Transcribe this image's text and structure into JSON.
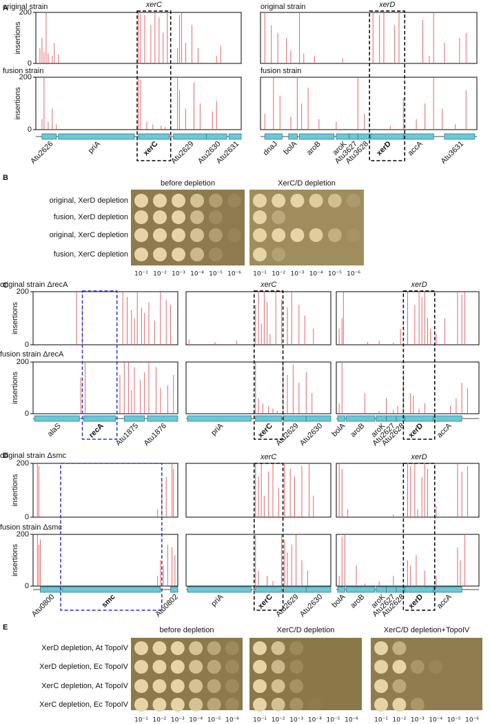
{
  "insertion_color": "#e8474a",
  "panels": {
    "A": {
      "letter": "A",
      "columns": [
        {
          "highlight": "xerC",
          "plots": [
            {
              "title": "original strain",
              "ylabel": "insertions",
              "ylim": [
                0,
                200
              ],
              "yticks": [
                0,
                200
              ],
              "xlim": [
                0,
                100
              ],
              "x": [
                2,
                3,
                4,
                5,
                6,
                8,
                9,
                11,
                50,
                51,
                53,
                56,
                58,
                60,
                62,
                64,
                69,
                70,
                71,
                73,
                76,
                79,
                88,
                90
              ],
              "values": [
                60,
                100,
                45,
                200,
                40,
                30,
                80,
                35,
                200,
                195,
                190,
                150,
                200,
                180,
                120,
                200,
                60,
                190,
                200,
                80,
                150,
                60,
                30,
                70
              ]
            },
            {
              "title": "fusion strain",
              "ylabel": "insertions",
              "ylim": [
                0,
                200
              ],
              "yticks": [
                0,
                200
              ],
              "xlim": [
                0,
                100
              ],
              "x": [
                3,
                4,
                6,
                8,
                10,
                50,
                51,
                54,
                57,
                61,
                63,
                69,
                70,
                73,
                77,
                80,
                86,
                88
              ],
              "values": [
                40,
                200,
                30,
                80,
                20,
                200,
                190,
                30,
                20,
                15,
                10,
                200,
                150,
                80,
                180,
                100,
                70,
                110
              ]
            }
          ],
          "genes": [
            "Atu2626",
            "priA",
            "xerC",
            "Atu2629",
            "Atu2630",
            "Atu2631"
          ]
        },
        {
          "highlight": "xerD",
          "plots": [
            {
              "title": "original strain",
              "ylim": [
                0,
                200
              ],
              "xlim": [
                0,
                100
              ],
              "x": [
                2,
                5,
                8,
                12,
                14,
                18,
                20,
                25,
                38,
                52,
                55,
                57,
                62,
                64,
                75,
                78,
                80,
                85,
                92,
                95
              ],
              "values": [
                200,
                150,
                120,
                100,
                50,
                200,
                40,
                30,
                20,
                200,
                190,
                200,
                150,
                200,
                170,
                30,
                200,
                80,
                100,
                120
              ]
            },
            {
              "title": "fusion strain",
              "ylim": [
                0,
                200
              ],
              "xlim": [
                0,
                100
              ],
              "x": [
                2,
                6,
                9,
                14,
                17,
                19,
                22,
                27,
                35,
                45,
                48,
                60,
                66,
                72,
                76,
                80,
                84,
                90,
                95
              ],
              "values": [
                60,
                200,
                130,
                50,
                200,
                100,
                160,
                40,
                30,
                200,
                60,
                15,
                120,
                40,
                100,
                200,
                80,
                20,
                150
              ]
            }
          ],
          "genes": [
            "dnaJ",
            "bolA",
            "aroB",
            "aroK",
            "Atu3627",
            "Atu3628",
            "xerD",
            "accA",
            "Atu3631"
          ]
        }
      ]
    },
    "B": {
      "letter": "B",
      "rows": [
        "original, XerD depletion",
        "fusion, XerD depletion",
        "original, XerC depletion",
        "fusion, XerC depletion"
      ],
      "plates": [
        {
          "title": "before depletion",
          "dilutions": [
            "10⁻¹",
            "10⁻²",
            "10⁻³",
            "10⁻⁴",
            "10⁻⁵",
            "10⁻⁶"
          ]
        },
        {
          "title": "XerC/D depletion",
          "dilutions": [
            "10⁻¹",
            "10⁻²",
            "10⁻³",
            "10⁻⁴",
            "10⁻⁵",
            "10⁻⁶"
          ]
        }
      ]
    },
    "C": {
      "letter": "C",
      "columns": [
        {
          "plots": [
            {
              "title": "original strain ΔrecA",
              "ylabel": "insertions",
              "ylim": [
                0,
                200
              ],
              "yticks": [
                0,
                200
              ],
              "xlim": [
                0,
                100
              ],
              "x": [
                30,
                34,
                62,
                65,
                68,
                70,
                72,
                75,
                77,
                80,
                84,
                88,
                92,
                95
              ],
              "values": [
                200,
                150,
                200,
                180,
                130,
                100,
                200,
                140,
                120,
                160,
                90,
                200,
                170,
                150
              ]
            },
            {
              "title": "fusion strain ΔrecA",
              "ylabel": "insertions",
              "ylim": [
                0,
                200
              ],
              "yticks": [
                0,
                200
              ],
              "xlim": [
                0,
                100
              ],
              "x": [
                33,
                36,
                60,
                63,
                66,
                68,
                70,
                74,
                77,
                80,
                85,
                88,
                93,
                97
              ],
              "values": [
                140,
                200,
                150,
                200,
                200,
                90,
                180,
                130,
                160,
                200,
                180,
                100,
                110,
                150
              ]
            }
          ],
          "genes": [
            "alaS",
            "recA",
            "Atu1875",
            "Atu1876"
          ]
        },
        {
          "highlight": "xerC",
          "plots": [
            {
              "ylim": [
                0,
                200
              ],
              "xlim": [
                0,
                100
              ],
              "x": [
                2,
                20,
                35,
                48,
                50,
                52,
                54,
                56,
                58,
                62,
                66,
                70,
                73,
                78,
                82,
                88
              ],
              "values": [
                20,
                10,
                15,
                150,
                200,
                80,
                200,
                160,
                40,
                200,
                170,
                140,
                200,
                150,
                110,
                60
              ]
            },
            {
              "ylim": [
                0,
                200
              ],
              "xlim": [
                0,
                100
              ],
              "x": [
                48,
                50,
                53,
                57,
                60,
                63,
                67,
                70,
                74,
                78,
                83,
                87
              ],
              "values": [
                200,
                60,
                40,
                30,
                20,
                10,
                200,
                150,
                190,
                120,
                160,
                80
              ]
            }
          ],
          "genes": [
            "priA",
            "xerC",
            "Atu2629",
            "Atu2630"
          ]
        },
        {
          "highlight": "xerD",
          "plots": [
            {
              "ylim": [
                0,
                200
              ],
              "xlim": [
                0,
                100
              ],
              "x": [
                2,
                4,
                5,
                22,
                30,
                40,
                45,
                50,
                55,
                58,
                60,
                62,
                64,
                66,
                70,
                76,
                85,
                88,
                90
              ],
              "values": [
                60,
                100,
                200,
                10,
                15,
                8,
                60,
                200,
                150,
                200,
                180,
                200,
                100,
                60,
                40,
                100,
                200,
                190,
                200
              ]
            },
            {
              "ylim": [
                0,
                200
              ],
              "xlim": [
                0,
                100
              ],
              "x": [
                2,
                4,
                20,
                30,
                35,
                40,
                43,
                47,
                52,
                54,
                58,
                62,
                80,
                84,
                88,
                92
              ],
              "values": [
                40,
                200,
                80,
                10,
                60,
                15,
                30,
                150,
                80,
                70,
                20,
                40,
                30,
                60,
                120,
                100
              ]
            }
          ],
          "genes": [
            "bolA",
            "aroB",
            "aroK",
            "Atu2627",
            "Atu2628",
            "xerD",
            "accA"
          ]
        }
      ]
    },
    "D": {
      "letter": "D",
      "columns": [
        {
          "plots": [
            {
              "title": "original strain Δsmc",
              "ylabel": "insertions",
              "ylim": [
                0,
                200
              ],
              "yticks": [
                0,
                200
              ],
              "xlim": [
                0,
                100
              ],
              "x": [
                3,
                4,
                86,
                89,
                92,
                96,
                97
              ],
              "values": [
                200,
                190,
                30,
                130,
                150,
                200,
                180
              ]
            },
            {
              "title": "fusion strain Δsmc",
              "ylabel": "insertions",
              "ylim": [
                0,
                200
              ],
              "yticks": [
                0,
                200
              ],
              "xlim": [
                0,
                100
              ],
              "x": [
                3,
                4,
                5,
                86,
                88,
                90,
                93,
                96,
                98
              ],
              "values": [
                200,
                160,
                180,
                40,
                100,
                80,
                160,
                150,
                120
              ]
            }
          ],
          "genes": [
            "Atu0800",
            "smc",
            "Atu0802"
          ]
        },
        {
          "highlight": "xerC",
          "plots": [
            {
              "ylim": [
                0,
                200
              ],
              "xlim": [
                0,
                100
              ],
              "x": [
                48,
                50,
                52,
                54,
                57,
                60,
                64,
                68,
                72,
                75,
                80,
                85,
                88
              ],
              "values": [
                200,
                150,
                200,
                80,
                170,
                200,
                110,
                200,
                180,
                150,
                190,
                200,
                80
              ]
            },
            {
              "ylim": [
                0,
                200
              ],
              "xlim": [
                0,
                100
              ],
              "x": [
                48,
                50,
                56,
                60,
                66,
                68,
                70,
                73,
                76,
                80,
                84
              ],
              "values": [
                200,
                60,
                40,
                20,
                200,
                180,
                130,
                160,
                200,
                100,
                60
              ]
            }
          ],
          "genes": [
            "priA",
            "xerC",
            "Atu2629",
            "Atu2630"
          ]
        },
        {
          "highlight": "xerD",
          "plots": [
            {
              "ylim": [
                0,
                200
              ],
              "xlim": [
                0,
                100
              ],
              "x": [
                2,
                4,
                8,
                40,
                50,
                52,
                55,
                57,
                60,
                62,
                64,
                70,
                85,
                88,
                92
              ],
              "values": [
                200,
                180,
                30,
                10,
                200,
                190,
                200,
                30,
                150,
                200,
                180,
                40,
                200,
                170,
                190
              ]
            },
            {
              "ylim": [
                0,
                200
              ],
              "xlim": [
                0,
                100
              ],
              "x": [
                2,
                4,
                6,
                14,
                20,
                30,
                40,
                50,
                52,
                56,
                62,
                70,
                85,
                87,
                90
              ],
              "values": [
                40,
                190,
                200,
                80,
                10,
                20,
                40,
                100,
                80,
                120,
                60,
                40,
                150,
                100,
                200
              ]
            }
          ],
          "genes": [
            "bolA",
            "aroB",
            "aroK",
            "Atu2627",
            "Atu2628",
            "xerD",
            "accA"
          ]
        }
      ]
    },
    "E": {
      "letter": "E",
      "rows": [
        "XerD depletion, At TopoIV",
        "XerD depletion, Ec TopoIV",
        "XerC depletion, At TopoIV",
        "XerC depletion, Ec TopoIV"
      ],
      "plates": [
        {
          "title": "before depletion",
          "dilutions": [
            "10⁻¹",
            "10⁻²",
            "10⁻³",
            "10⁻⁴",
            "10⁻⁵",
            "10⁻⁶"
          ]
        },
        {
          "title": "XerC/D depletion",
          "dilutions": [
            "10⁻¹",
            "10⁻²",
            "10⁻³",
            "10⁻⁴",
            "10⁻⁵",
            "10⁻⁶"
          ]
        },
        {
          "title": "XerC/D depletion+TopoIV",
          "dilutions": [
            "10⁻¹",
            "10⁻²",
            "10⁻³",
            "10⁻⁴",
            "10⁻⁵",
            "10⁻⁶"
          ]
        }
      ]
    }
  }
}
